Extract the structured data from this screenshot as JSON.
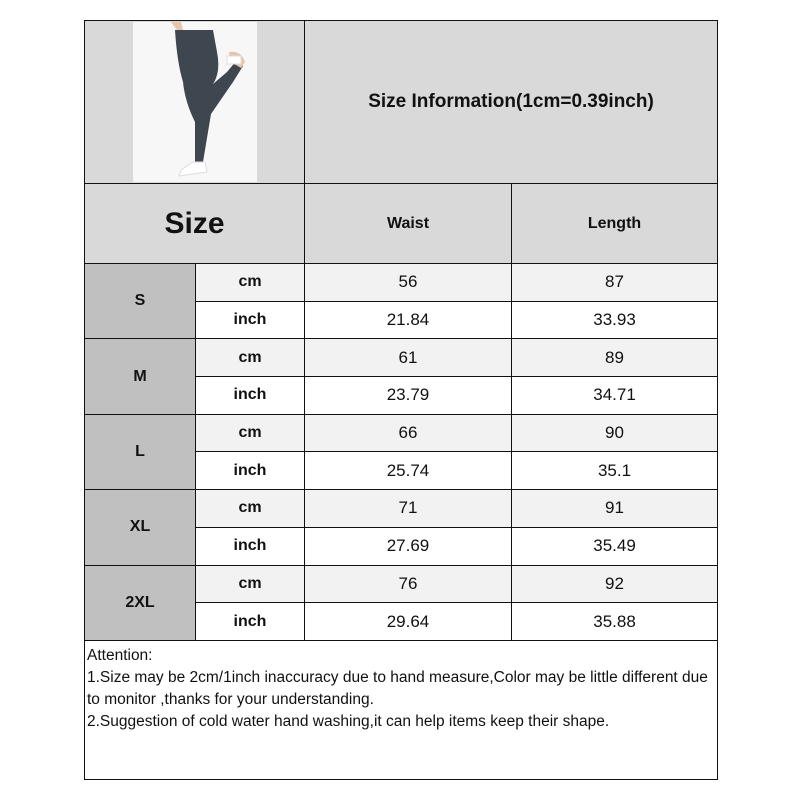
{
  "header": {
    "title": "Size Information(1cm=0.39inch)",
    "size_label": "Size",
    "columns": [
      "Waist",
      "Length"
    ]
  },
  "colors": {
    "header_bg": "#d9d9d9",
    "size_bg": "#c0c0c0",
    "cm_row_bg": "#f2f2f2",
    "leggings": "#3e4650"
  },
  "rows": [
    {
      "size": "S",
      "cm": {
        "unit": "cm",
        "waist": "56",
        "length": "87"
      },
      "inch": {
        "unit": "inch",
        "waist": "21.84",
        "length": "33.93"
      }
    },
    {
      "size": "M",
      "cm": {
        "unit": "cm",
        "waist": "61",
        "length": "89"
      },
      "inch": {
        "unit": "inch",
        "waist": "23.79",
        "length": "34.71"
      }
    },
    {
      "size": "L",
      "cm": {
        "unit": "cm",
        "waist": "66",
        "length": "90"
      },
      "inch": {
        "unit": "inch",
        "waist": "25.74",
        "length": "35.1"
      }
    },
    {
      "size": "XL",
      "cm": {
        "unit": "cm",
        "waist": "71",
        "length": "91"
      },
      "inch": {
        "unit": "inch",
        "waist": "27.69",
        "length": "35.49"
      }
    },
    {
      "size": "2XL",
      "cm": {
        "unit": "cm",
        "waist": "76",
        "length": "92"
      },
      "inch": {
        "unit": "inch",
        "waist": "29.64",
        "length": "35.88"
      }
    }
  ],
  "attention": {
    "heading": "Attention:",
    "line1": "1.Size may be 2cm/1inch inaccuracy due to hand measure,Color may be little different due to monitor ,thanks for your understanding.",
    "line2": "2.Suggestion of cold water hand washing,it can help items keep their shape."
  }
}
